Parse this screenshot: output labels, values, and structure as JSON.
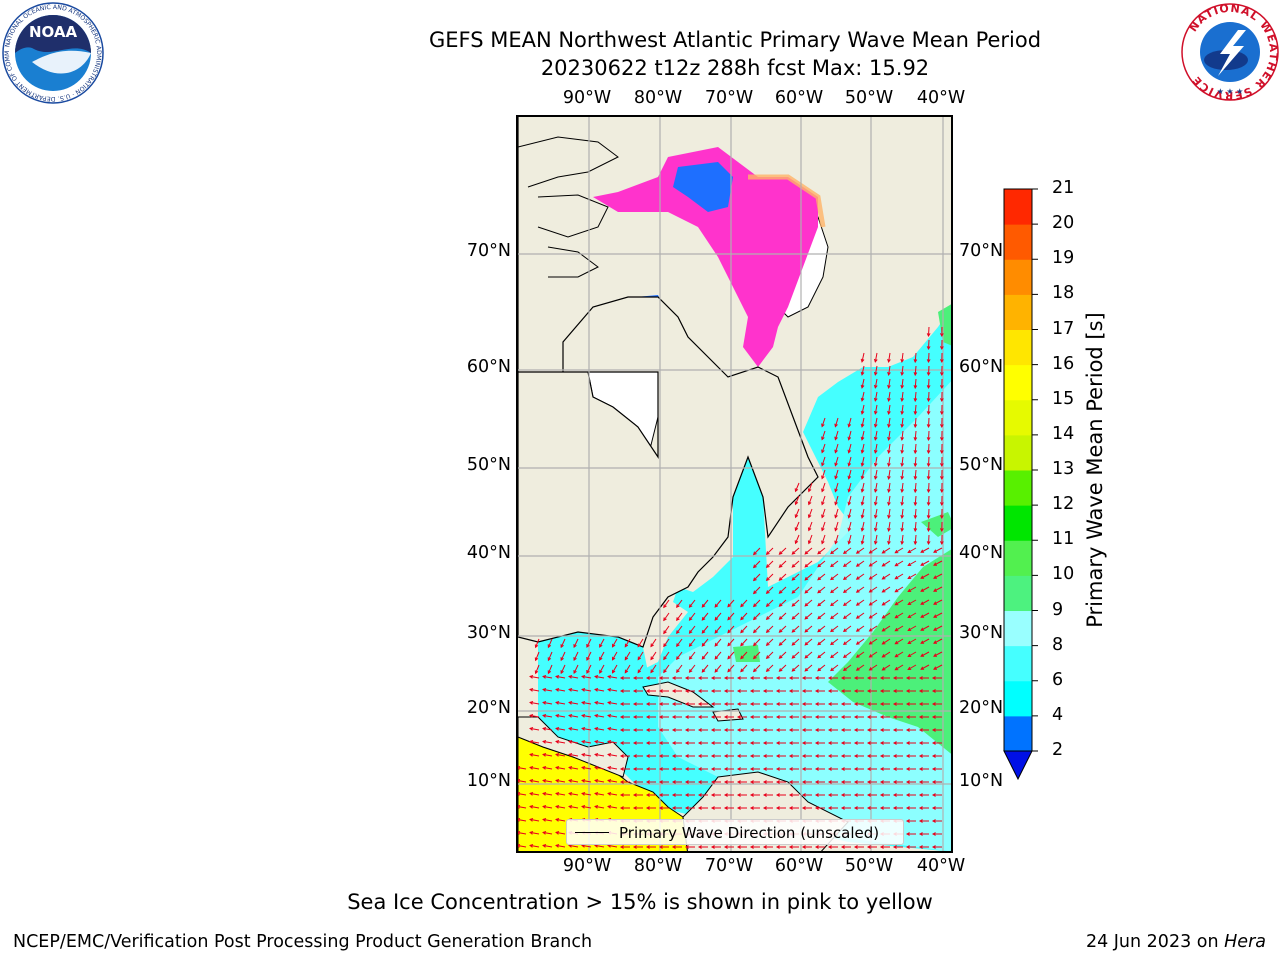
{
  "title": {
    "line1": "GEFS MEAN Northwest Atlantic Primary Wave Mean Period",
    "line2": "20230622 t12z 288h fcst   Max: 15.92"
  },
  "map": {
    "lon_ticks": [
      "90°W",
      "80°W",
      "70°W",
      "60°W",
      "50°W",
      "40°W"
    ],
    "lat_ticks": [
      "70°N",
      "60°N",
      "50°N",
      "40°N",
      "30°N",
      "20°N",
      "10°N"
    ],
    "legend_label": "Primary Wave Direction (unscaled)",
    "colors": {
      "ocean_low": "#00ffff",
      "ocean_mid": "#99ffff",
      "green": "#4cf07a",
      "land": "#efedde",
      "yellow": "#ffff00",
      "ice_pink": "#ff33cc",
      "ice_blue": "#1e6fff",
      "arrow": "#e8001a"
    }
  },
  "colorbar": {
    "label": "Primary Wave Mean Period [s]",
    "levels": [
      "2",
      "4",
      "6",
      "8",
      "9",
      "10",
      "11",
      "12",
      "13",
      "14",
      "15",
      "16",
      "17",
      "18",
      "19",
      "20",
      "21"
    ],
    "bands": [
      "#0073ff",
      "#00ffff",
      "#45ffff",
      "#99ffff",
      "#4df27f",
      "#52f04f",
      "#00e600",
      "#58f000",
      "#c8f500",
      "#e6fa00",
      "#ffff00",
      "#ffe600",
      "#ffb300",
      "#ff8c00",
      "#ff5a00",
      "#ff2800",
      "#ff0000"
    ],
    "extend_color": "#0010e6"
  },
  "subtitle": "Sea Ice Concentration > 15% is shown in pink to yellow",
  "footer": {
    "left": "NCEP/EMC/Verification Post Processing Product Generation Branch",
    "date": "24 Jun 2023 on ",
    "machine": "Hera"
  },
  "logos": {
    "noaa_text": "NOAA",
    "noaa_ring": "NATIONAL OCEANIC AND ATMOSPHERIC ADMINISTRATION · U.S. DEPARTMENT OF COMMERCE",
    "nws_ring": "NATIONAL WEATHER SERVICE"
  }
}
